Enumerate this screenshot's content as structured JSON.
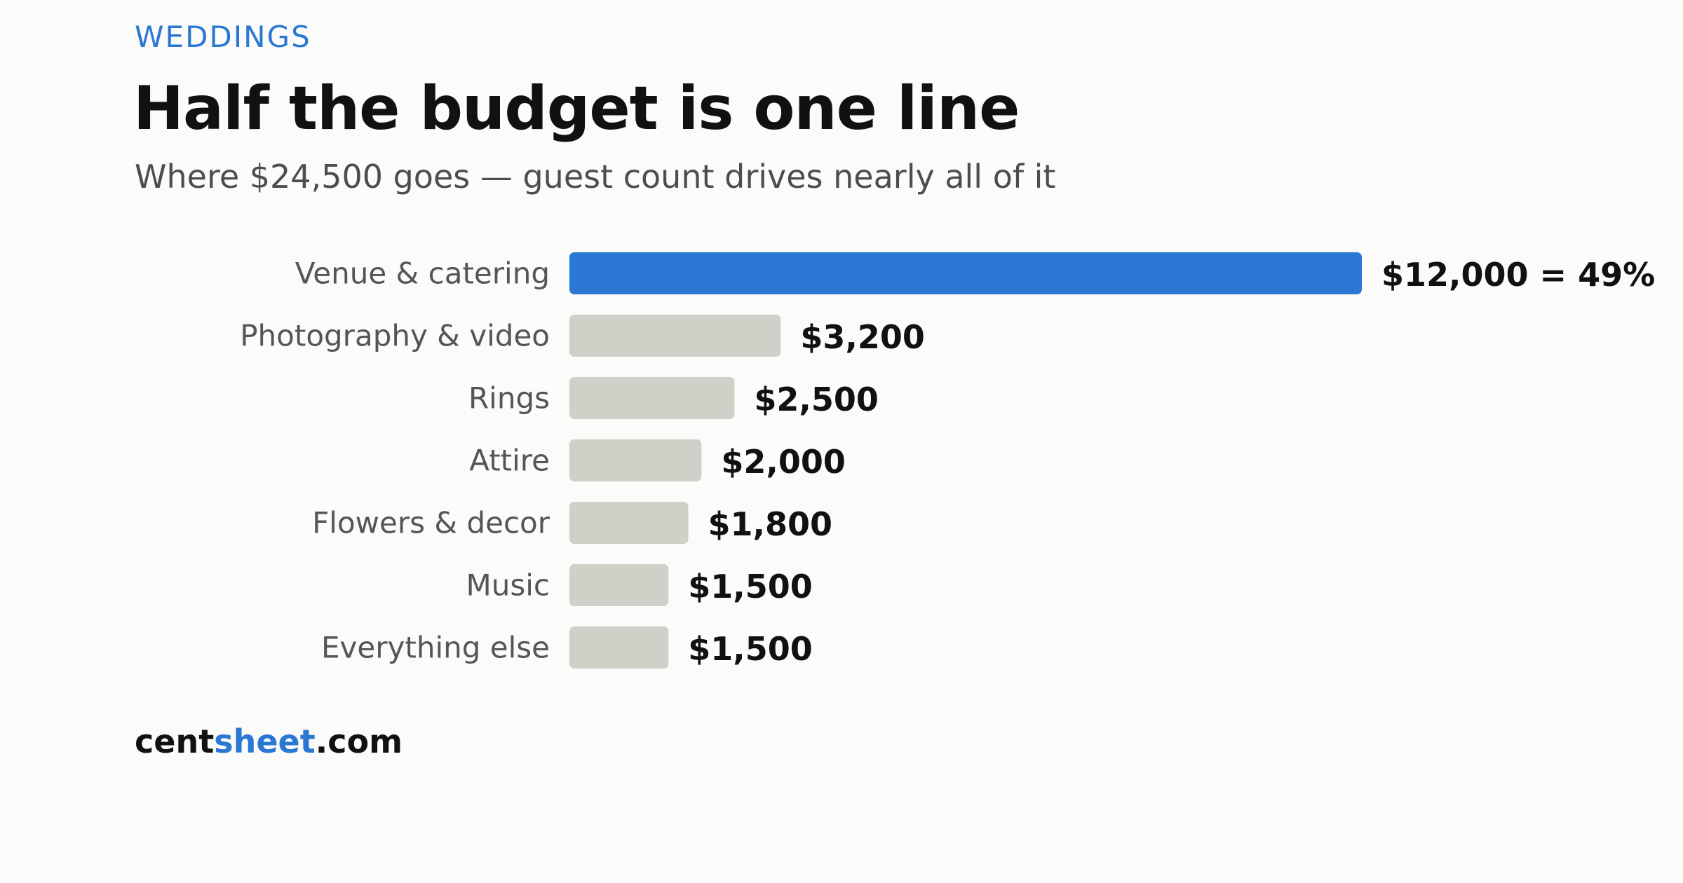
{
  "kicker": "WEDDINGS",
  "title": "Half the budget is one line",
  "subtitle": "Where $24,500 goes — guest count drives nearly all of it",
  "brand": {
    "part1": "cent",
    "part2": "sheet",
    "part3": ".com"
  },
  "colors": {
    "highlight": "#2b78d4",
    "bar": "#d0cfc8",
    "background": "#fbfbf9",
    "brand_accent": "#2b78d4"
  },
  "chart_data": {
    "type": "bar",
    "orientation": "horizontal",
    "title": "Half the budget is one line",
    "subtitle": "Where $24,500 goes — guest count drives nearly all of it",
    "categories": [
      "Venue & catering",
      "Photography & video",
      "Rings",
      "Attire",
      "Flowers & decor",
      "Music",
      "Everything else"
    ],
    "values": [
      12000,
      3200,
      2500,
      2000,
      1800,
      1500,
      1500
    ],
    "value_labels": [
      "$12,000 = 49%",
      "$3,200",
      "$2,500",
      "$2,000",
      "$1,800",
      "$1,500",
      "$1,500"
    ],
    "highlight_index": 0,
    "xlim": [
      0,
      12000
    ],
    "grid": false,
    "legend": "none"
  }
}
